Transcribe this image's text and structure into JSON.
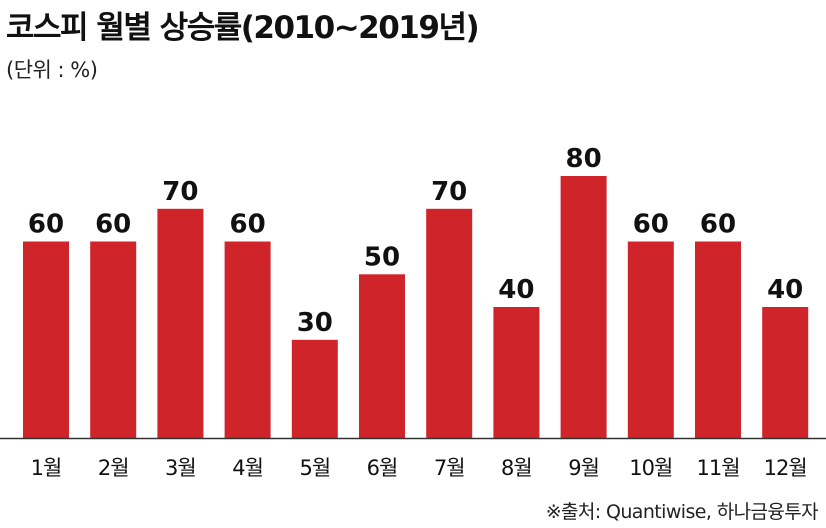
{
  "header": {
    "title": "코스피 월별 상승률(2010~2019년)",
    "unit": "(단위 : %)"
  },
  "footer": {
    "source": "※출처: Quantiwise, 하나금융투자"
  },
  "colors": {
    "bar": "#d0242b",
    "axis": "#333333",
    "text": "#111111"
  },
  "chart_data": {
    "type": "bar",
    "title": "코스피 월별 상승률(2010~2019년)",
    "unit": "(단위 : %)",
    "categories": [
      "1월",
      "2월",
      "3월",
      "4월",
      "5월",
      "6월",
      "7월",
      "8월",
      "9월",
      "10월",
      "11월",
      "12월"
    ],
    "values": [
      60,
      60,
      70,
      60,
      30,
      50,
      70,
      40,
      80,
      60,
      60,
      40
    ],
    "data_labels": [
      "60",
      "60",
      "70",
      "60",
      "30",
      "50",
      "70",
      "40",
      "80",
      "60",
      "60",
      "40"
    ],
    "xlabel": "",
    "ylabel": "",
    "ylim": [
      0,
      100
    ],
    "grid": false,
    "legend": "none"
  }
}
